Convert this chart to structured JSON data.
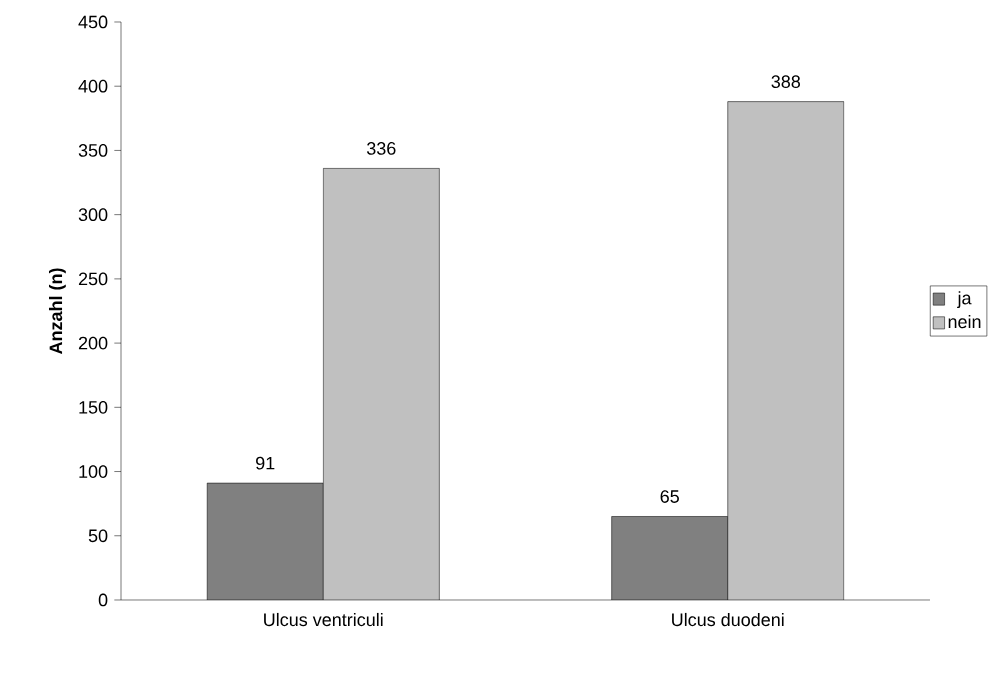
{
  "chart_data": {
    "type": "bar",
    "ylabel": "Anzahl (n)",
    "categories": [
      "Ulcus ventriculi",
      "Ulcus duodeni"
    ],
    "series": [
      {
        "name": "ja",
        "color": "#808080",
        "values": [
          91,
          65
        ]
      },
      {
        "name": "nein",
        "color": "#c0c0c0",
        "values": [
          336,
          388
        ]
      }
    ],
    "ylim": [
      0,
      450
    ],
    "yticks": [
      0,
      50,
      100,
      150,
      200,
      250,
      300,
      350,
      400,
      450
    ],
    "data_labels": true,
    "legend": "right",
    "grid": false
  }
}
